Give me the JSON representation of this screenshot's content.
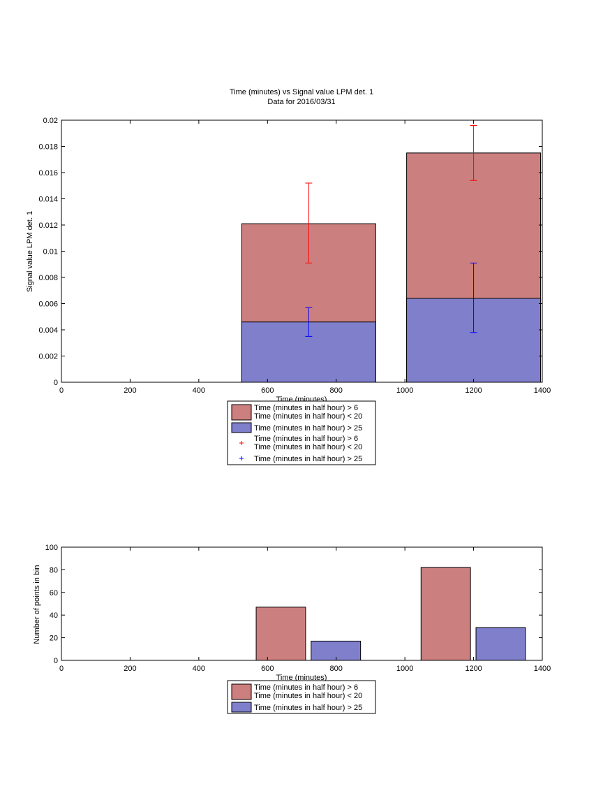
{
  "chart_data": [
    {
      "type": "bar",
      "title": "Time (minutes) vs Signal value LPM det. 1",
      "subtitle": "Data for 2016/03/31",
      "xlabel": "Time (minutes)",
      "ylabel": "Signal value LPM det. 1",
      "xlim": [
        0,
        1400
      ],
      "ylim": [
        0,
        0.02
      ],
      "xticks": [
        0,
        200,
        400,
        600,
        800,
        1000,
        1200,
        1400
      ],
      "yticks": [
        0,
        0.002,
        0.004,
        0.006,
        0.008,
        0.01,
        0.012,
        0.014,
        0.016,
        0.018,
        0.02
      ],
      "grid": false,
      "legend_position": "bottom",
      "bars": [
        {
          "x_start": 525,
          "x_end": 915,
          "value": 0.0121,
          "series": 0
        },
        {
          "x_start": 525,
          "x_end": 915,
          "value": 0.0046,
          "series": 1
        },
        {
          "x_start": 1005,
          "x_end": 1395,
          "value": 0.0175,
          "series": 0
        },
        {
          "x_start": 1005,
          "x_end": 1395,
          "value": 0.0064,
          "series": 1
        }
      ],
      "error_bars": [
        {
          "x": 720,
          "low": 0.0091,
          "high": 0.0152,
          "series": 0
        },
        {
          "x": 720,
          "low": 0.0035,
          "high": 0.0057,
          "series": 1
        },
        {
          "x": 1200,
          "low": 0.0154,
          "high": 0.0196,
          "series": 0
        },
        {
          "x": 1200,
          "low": 0.0038,
          "high": 0.0091,
          "series": 1
        }
      ],
      "series": [
        {
          "name": "Time (minutes in half hour) > 6\nTime (minutes in half hour) < 20",
          "color": "#cc7f7f",
          "error_color": "#ff0000"
        },
        {
          "name": "Time (minutes in half hour) > 25",
          "color": "#7f7fcc",
          "error_color": "#0000ff"
        }
      ],
      "legend": [
        {
          "kind": "patch",
          "series": 0,
          "lines": [
            "Time (minutes in half hour) > 6",
            "Time (minutes in half hour) < 20"
          ]
        },
        {
          "kind": "patch",
          "series": 1,
          "lines": [
            "Time (minutes in half hour) > 25"
          ]
        },
        {
          "kind": "marker",
          "series": 0,
          "lines": [
            "Time (minutes in half hour) > 6",
            "Time (minutes in half hour) < 20"
          ]
        },
        {
          "kind": "marker",
          "series": 1,
          "lines": [
            "Time (minutes in half hour) > 25"
          ]
        }
      ]
    },
    {
      "type": "bar",
      "title": "",
      "xlabel": "Time (minutes)",
      "ylabel": "Number of points in bin",
      "xlim": [
        0,
        1400
      ],
      "ylim": [
        0,
        100
      ],
      "xticks": [
        0,
        200,
        400,
        600,
        800,
        1000,
        1200,
        1400
      ],
      "yticks": [
        0,
        20,
        40,
        60,
        80,
        100
      ],
      "grid": false,
      "legend_position": "bottom",
      "bars": [
        {
          "x_start": 567,
          "x_end": 711,
          "value": 47,
          "series": 0
        },
        {
          "x_start": 727,
          "x_end": 871,
          "value": 17,
          "series": 1
        },
        {
          "x_start": 1047,
          "x_end": 1191,
          "value": 82,
          "series": 0
        },
        {
          "x_start": 1207,
          "x_end": 1351,
          "value": 29,
          "series": 1
        }
      ],
      "series": [
        {
          "name": "Time (minutes in half hour) > 6\nTime (minutes in half hour) < 20",
          "color": "#cc7f7f"
        },
        {
          "name": "Time (minutes in half hour) > 25",
          "color": "#7f7fcc"
        }
      ],
      "legend": [
        {
          "kind": "patch",
          "series": 0,
          "lines": [
            "Time (minutes in half hour) > 6",
            "Time (minutes in half hour) < 20"
          ]
        },
        {
          "kind": "patch",
          "series": 1,
          "lines": [
            "Time (minutes in half hour) > 25"
          ]
        }
      ]
    }
  ]
}
